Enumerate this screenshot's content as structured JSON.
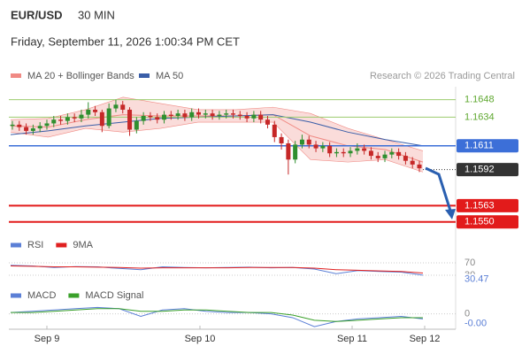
{
  "header": {
    "symbol": "EUR/USD",
    "interval": "30 MIN",
    "timestamp": "Friday, September 11, 2026 1:00:34 PM CET"
  },
  "chart_data": [
    {
      "type": "candlestick",
      "legend": [
        {
          "name": "MA 20 + Bollinger Bands",
          "color": "#f08a84"
        },
        {
          "name": "MA 50",
          "color": "#3a5ea8"
        }
      ],
      "credit": "Research © 2026 Trading Central",
      "x_labels": [
        "Sep 9",
        "Sep 10",
        "Sep 11",
        "Sep 12"
      ],
      "ylim": [
        1.1542,
        1.1657
      ],
      "open": [
        1.1627,
        1.1628,
        1.1626,
        1.1623,
        1.1625,
        1.1627,
        1.1629,
        1.1632,
        1.1631,
        1.1634,
        1.1633,
        1.1636,
        1.164,
        1.1638,
        1.1627,
        1.1641,
        1.1644,
        1.164,
        1.1624,
        1.1631,
        1.1635,
        1.1634,
        1.1632,
        1.1636,
        1.1635,
        1.1637,
        1.1634,
        1.1638,
        1.1636,
        1.1637,
        1.1635,
        1.1636,
        1.1637,
        1.1636,
        1.1635,
        1.1633,
        1.1636,
        1.1632,
        1.1628,
        1.1618,
        1.1613,
        1.16,
        1.1612,
        1.1616,
        1.1612,
        1.1609,
        1.1611,
        1.1605,
        1.1606,
        1.1605,
        1.1607,
        1.1609,
        1.1607,
        1.1603,
        1.1601,
        1.1604,
        1.1606,
        1.1603,
        1.1599,
        1.1596
      ],
      "high": [
        1.1631,
        1.1631,
        1.1629,
        1.1628,
        1.163,
        1.1632,
        1.1635,
        1.1635,
        1.1637,
        1.1637,
        1.164,
        1.1646,
        1.1643,
        1.164,
        1.1645,
        1.1648,
        1.1647,
        1.1642,
        1.1634,
        1.1638,
        1.1638,
        1.1637,
        1.1639,
        1.1639,
        1.164,
        1.164,
        1.1641,
        1.1641,
        1.164,
        1.164,
        1.1639,
        1.164,
        1.164,
        1.1639,
        1.1638,
        1.1639,
        1.1639,
        1.1635,
        1.1631,
        1.1621,
        1.1616,
        1.1615,
        1.162,
        1.1619,
        1.1615,
        1.1614,
        1.1614,
        1.1609,
        1.1609,
        1.161,
        1.1613,
        1.1612,
        1.161,
        1.1606,
        1.1607,
        1.1609,
        1.1609,
        1.1606,
        1.1602,
        1.1599
      ],
      "low": [
        1.1624,
        1.1623,
        1.162,
        1.162,
        1.1622,
        1.1624,
        1.1626,
        1.1628,
        1.1628,
        1.163,
        1.163,
        1.1633,
        1.1635,
        1.1622,
        1.1625,
        1.1638,
        1.1637,
        1.1619,
        1.1621,
        1.1628,
        1.1631,
        1.1629,
        1.1629,
        1.1632,
        1.1632,
        1.1631,
        1.1631,
        1.1633,
        1.1633,
        1.1632,
        1.1632,
        1.1633,
        1.1633,
        1.1632,
        1.163,
        1.163,
        1.1629,
        1.1625,
        1.1614,
        1.1608,
        1.1588,
        1.1597,
        1.1609,
        1.1609,
        1.1606,
        1.1606,
        1.1602,
        1.1602,
        1.1602,
        1.1602,
        1.1604,
        1.1604,
        1.16,
        1.1598,
        1.1598,
        1.1601,
        1.16,
        1.1596,
        1.1593,
        1.159
      ],
      "close": [
        1.1628,
        1.1626,
        1.1623,
        1.1625,
        1.1627,
        1.1629,
        1.1632,
        1.1631,
        1.1634,
        1.1633,
        1.1636,
        1.164,
        1.1638,
        1.1627,
        1.1641,
        1.1644,
        1.164,
        1.1624,
        1.1631,
        1.1635,
        1.1634,
        1.1632,
        1.1636,
        1.1635,
        1.1637,
        1.1634,
        1.1638,
        1.1636,
        1.1637,
        1.1635,
        1.1636,
        1.1637,
        1.1636,
        1.1635,
        1.1633,
        1.1636,
        1.1632,
        1.1628,
        1.1618,
        1.1613,
        1.16,
        1.1612,
        1.1616,
        1.1612,
        1.1609,
        1.1611,
        1.1605,
        1.1606,
        1.1605,
        1.1607,
        1.1609,
        1.1607,
        1.1603,
        1.1601,
        1.1604,
        1.1606,
        1.1603,
        1.1599,
        1.1596,
        1.1593
      ],
      "bb_upper": [
        1.1632,
        1.1633,
        1.164,
        1.165,
        1.1645,
        1.164,
        1.164,
        1.1642,
        1.1637,
        1.1625,
        1.1616,
        1.1607
      ],
      "bb_lower": [
        1.1622,
        1.1618,
        1.1625,
        1.1622,
        1.1625,
        1.163,
        1.163,
        1.163,
        1.16,
        1.1598,
        1.16,
        1.159
      ],
      "ma20": [
        1.1627,
        1.1626,
        1.1632,
        1.1636,
        1.1635,
        1.1635,
        1.1635,
        1.1636,
        1.1619,
        1.1611,
        1.1608,
        1.1598
      ],
      "ma50": [
        1.162,
        1.1623,
        1.1627,
        1.163,
        1.1633,
        1.1634,
        1.1635,
        1.1636,
        1.163,
        1.1622,
        1.1616,
        1.1611
      ],
      "levels": [
        {
          "value": 1.1648,
          "color": "#9ccc6e"
        },
        {
          "value": 1.1634,
          "color": "#9ccc6e"
        },
        {
          "value": 1.1611,
          "color": "#3c6fd8"
        },
        {
          "value": 1.1563,
          "color": "#e21b1b"
        },
        {
          "value": 1.155,
          "label": "1.1550",
          "color": "#e21b1b"
        }
      ],
      "last_price": 1.1592
    },
    {
      "type": "line",
      "ylim": [
        0,
        100
      ],
      "yticks": [
        70,
        30
      ],
      "series": [
        {
          "name": "RSI",
          "color": "#5b7fd6",
          "values": [
            62,
            60,
            55,
            58,
            57,
            52,
            48,
            57,
            55,
            54,
            55,
            56,
            54,
            55,
            50,
            35,
            45,
            42,
            40,
            30.47
          ]
        },
        {
          "name": "9MA",
          "color": "#e02020",
          "values": [
            60,
            59,
            57,
            57,
            56,
            55,
            53,
            54,
            54,
            54,
            54,
            55,
            55,
            55,
            53,
            48,
            46,
            44,
            42,
            37
          ]
        }
      ]
    },
    {
      "type": "line",
      "ylim": [
        -0.0012,
        0.0008
      ],
      "yticks": [
        0
      ],
      "series": [
        {
          "name": "MACD",
          "color": "#5b7fd6",
          "values": [
            0.0001,
            0.0002,
            0.0003,
            0.0004,
            0.0005,
            0.0004,
            -0.0002,
            0.0003,
            0.0004,
            0.0002,
            0.0001,
            0.0001,
            0,
            -0.0003,
            -0.001,
            -0.0006,
            -0.0004,
            -0.0003,
            -0.0002,
            -0.0004
          ],
          "value_label": "-0.00"
        },
        {
          "name": "MACD Signal",
          "color": "#3aa02a",
          "values": [
            0.0001,
            0.0001,
            0.0002,
            0.0003,
            0.0004,
            0.0004,
            0.0002,
            0.0002,
            0.0003,
            0.0003,
            0.0002,
            0.0001,
            0.0001,
            -0.0001,
            -0.0005,
            -0.0006,
            -0.0005,
            -0.0004,
            -0.0003,
            -0.0003
          ]
        }
      ]
    }
  ]
}
